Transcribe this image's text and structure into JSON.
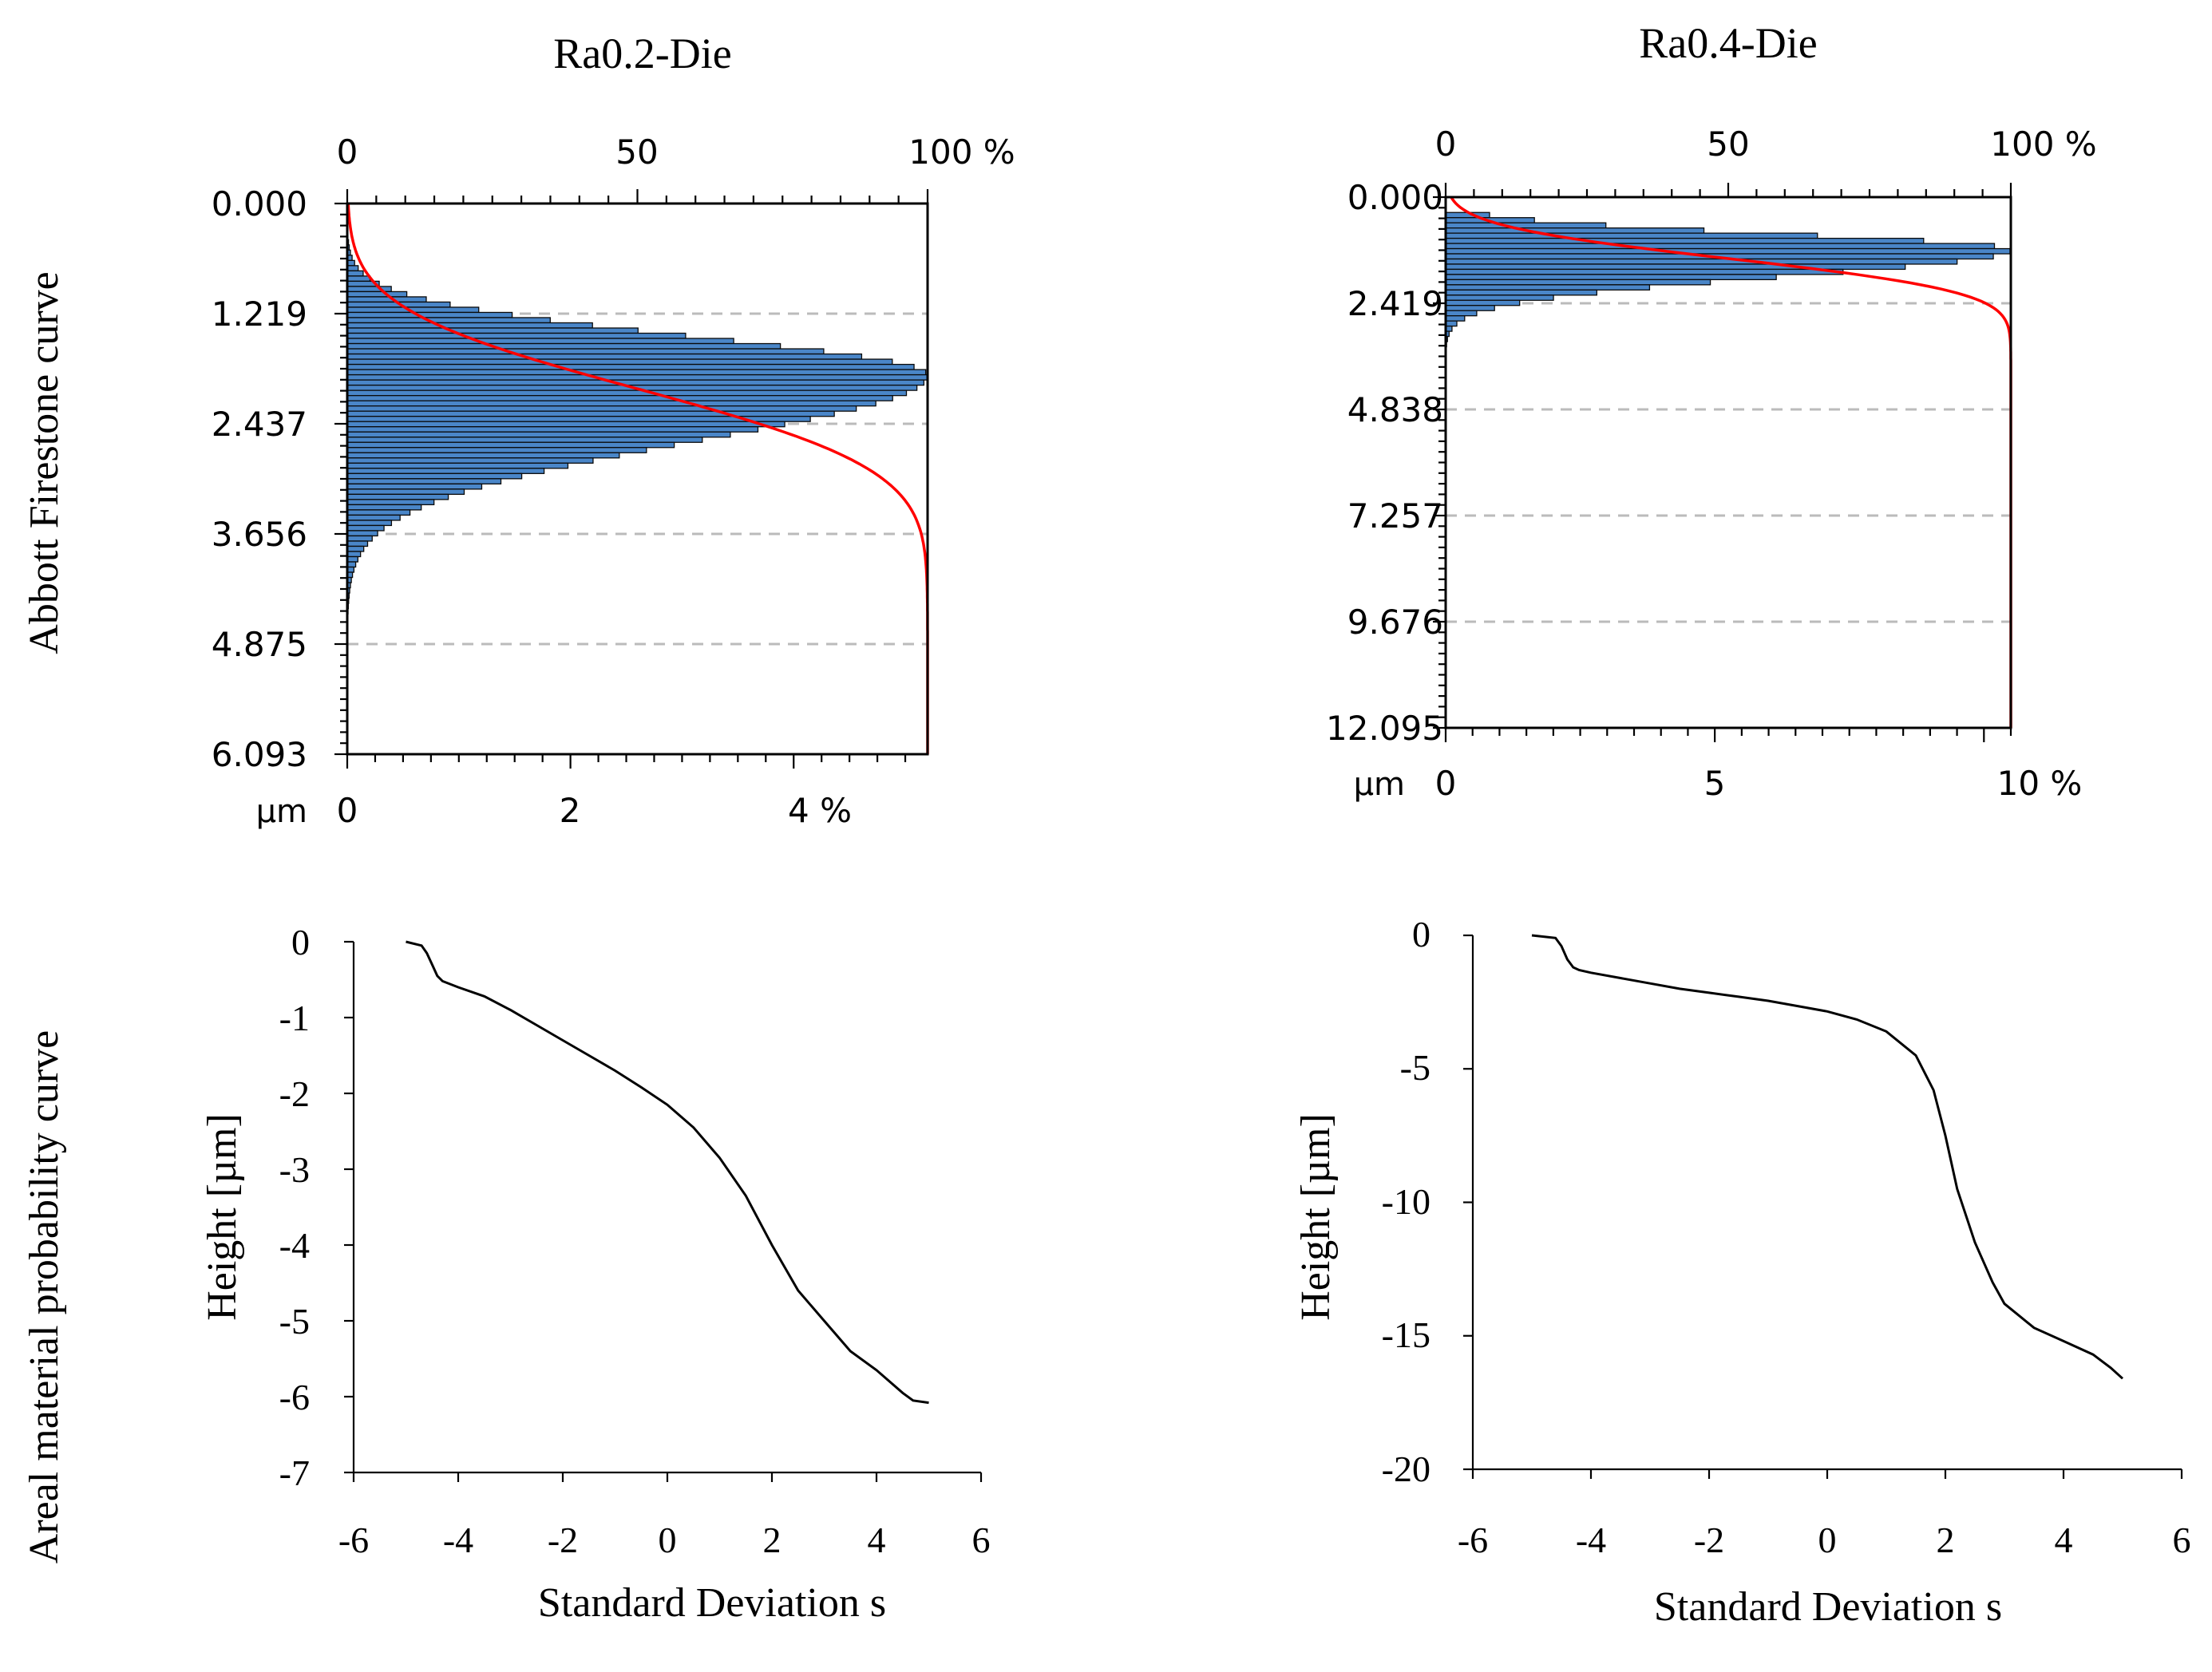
{
  "row_labels": {
    "top": "Abbott Firestone curve",
    "bottom": "Areal material probability curve"
  },
  "colors": {
    "histogram_fill": "#4a86c8",
    "histogram_edge": "#0a0a0a",
    "abbott_curve": "#ff0000",
    "grid": "#bbbbbb",
    "axis": "#000000"
  },
  "chart_data": [
    {
      "id": "abbott-ra02",
      "type": "bar",
      "orientation": "horizontal",
      "title": "Ra0.2-Die",
      "unit_label": "µm",
      "y_range": [
        0.0,
        6.093
      ],
      "y_ticks": [
        "0.000",
        "1.219",
        "2.437",
        "3.656",
        "4.875",
        "6.093"
      ],
      "top_axis": {
        "range": [
          0,
          100
        ],
        "ticks": [
          "0",
          "50",
          "100 %"
        ]
      },
      "bottom_axis": {
        "range": [
          0,
          5.2
        ],
        "ticks": [
          "0",
          "2",
          "4 %"
        ]
      },
      "histogram": {
        "mode": 1.9,
        "peak": 5.2,
        "sigma_above": 0.42,
        "sigma_below": 0.72,
        "start": 0.4,
        "end": 5.0
      },
      "abbott_curve": {
        "mu": 2.05,
        "sigma": 0.7
      }
    },
    {
      "id": "abbott-ra04",
      "type": "bar",
      "orientation": "horizontal",
      "title": "Ra0.4-Die",
      "unit_label": "µm",
      "y_range": [
        0.0,
        12.095
      ],
      "y_ticks": [
        "0.000",
        "2.419",
        "4.838",
        "7.257",
        "9.676",
        "12.095"
      ],
      "top_axis": {
        "range": [
          0,
          100
        ],
        "ticks": [
          "0",
          "50",
          "100 %"
        ]
      },
      "bottom_axis": {
        "range": [
          0,
          10.5
        ],
        "ticks": [
          "0",
          "5",
          "10 %"
        ]
      },
      "histogram": {
        "mode": 1.2,
        "peak": 10.5,
        "sigma_above": 0.35,
        "sigma_below": 0.6,
        "start": 0.35,
        "end": 6.0
      },
      "abbott_curve": {
        "mu": 1.4,
        "sigma": 0.6
      }
    },
    {
      "id": "prob-ra02",
      "type": "line",
      "xlabel": "Standard Deviation s",
      "ylabel": "Height [µm]",
      "xlim": [
        -6,
        6
      ],
      "ylim": [
        -7,
        0
      ],
      "x_ticks": [
        "-6",
        "-4",
        "-2",
        "0",
        "2",
        "4",
        "6"
      ],
      "y_ticks": [
        "0",
        "-1",
        "-2",
        "-3",
        "-4",
        "-5",
        "-6",
        "-7"
      ],
      "series": [
        {
          "name": "Ra0.2-Die",
          "x": [
            -5.0,
            -4.7,
            -4.6,
            -4.5,
            -4.4,
            -4.3,
            -4.0,
            -3.5,
            -3.0,
            -2.5,
            -2.0,
            -1.5,
            -1.0,
            -0.5,
            0.0,
            0.5,
            1.0,
            1.5,
            2.0,
            2.5,
            3.0,
            3.5,
            4.0,
            4.5,
            4.7,
            5.0
          ],
          "y": [
            0.0,
            -0.05,
            -0.15,
            -0.3,
            -0.45,
            -0.52,
            -0.6,
            -0.72,
            -0.9,
            -1.1,
            -1.3,
            -1.5,
            -1.7,
            -1.92,
            -2.15,
            -2.45,
            -2.85,
            -3.35,
            -4.0,
            -4.6,
            -5.0,
            -5.4,
            -5.65,
            -5.95,
            -6.05,
            -6.08
          ]
        }
      ]
    },
    {
      "id": "prob-ra04",
      "type": "line",
      "xlabel": "Standard Deviation s",
      "ylabel": "Height [µm]",
      "xlim": [
        -6,
        6
      ],
      "ylim": [
        -20,
        0
      ],
      "x_ticks": [
        "-6",
        "-4",
        "-2",
        "0",
        "2",
        "4",
        "6"
      ],
      "y_ticks": [
        "0",
        "-5",
        "-10",
        "-15",
        "-20"
      ],
      "series": [
        {
          "name": "Ra0.4-Die",
          "x": [
            -5.0,
            -4.6,
            -4.5,
            -4.4,
            -4.3,
            -4.2,
            -4.0,
            -3.5,
            -3.0,
            -2.5,
            -2.0,
            -1.5,
            -1.0,
            -0.5,
            0.0,
            0.5,
            1.0,
            1.5,
            1.8,
            2.0,
            2.2,
            2.5,
            2.8,
            3.0,
            3.5,
            4.0,
            4.5,
            4.8,
            5.0
          ],
          "y": [
            0.0,
            -0.1,
            -0.4,
            -0.9,
            -1.2,
            -1.3,
            -1.4,
            -1.6,
            -1.8,
            -2.0,
            -2.15,
            -2.3,
            -2.45,
            -2.65,
            -2.85,
            -3.15,
            -3.6,
            -4.5,
            -5.8,
            -7.5,
            -9.5,
            -11.5,
            -13.0,
            -13.8,
            -14.7,
            -15.2,
            -15.7,
            -16.2,
            -16.6
          ]
        }
      ]
    }
  ]
}
